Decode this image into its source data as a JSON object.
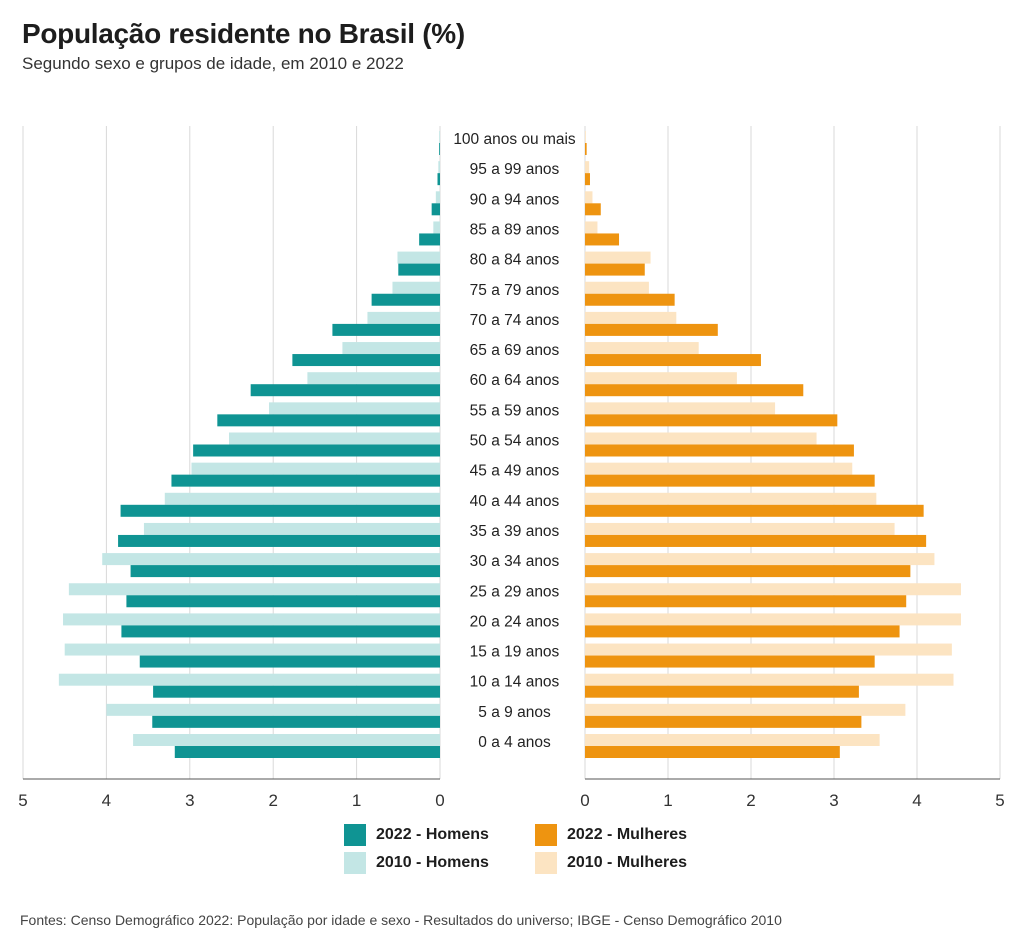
{
  "title": "População residente no Brasil (%)",
  "subtitle": "Segundo sexo e grupos de idade, em 2010 e 2022",
  "source": "Fontes: Censo Demográfico 2022: População por idade e sexo - Resultados do universo; IBGE - Censo Demográfico 2010",
  "legend": {
    "men_2022": "2022 - Homens",
    "men_2010": "2010 - Homens",
    "women_2022": "2022 - Mulheres",
    "women_2010": "2010 - Mulheres"
  },
  "colors": {
    "men_2022": "#0f9493",
    "men_2010": "#c3e6e5",
    "women_2022": "#ee9410",
    "women_2010": "#fce4c2",
    "grid": "#d9d9d9",
    "axis": "#555555"
  },
  "chart_data": {
    "type": "bar",
    "orientation": "horizontal-pyramid",
    "title": "População residente no Brasil (%)",
    "subtitle": "Segundo sexo e grupos de idade, em 2010 e 2022",
    "xlim": [
      0,
      5
    ],
    "xticks": [
      "0",
      "1",
      "2",
      "3",
      "4",
      "5"
    ],
    "grid": true,
    "legend_position": "bottom",
    "categories": [
      "100 anos ou mais",
      "95 a 99 anos",
      "90 a 94 anos",
      "85 a 89 anos",
      "80 a 84 anos",
      "75 a 79 anos",
      "70 a 74 anos",
      "65 a 69 anos",
      "60 a 64 anos",
      "55 a 59 anos",
      "50 a 54 anos",
      "45 a 49 anos",
      "40 a 44 anos",
      "35 a 39 anos",
      "30 a 34 anos",
      "25 a 29 anos",
      "20 a 24 anos",
      "15 a 19 anos",
      "10 a 14 anos",
      "5 a 9 anos",
      "0 a 4 anos"
    ],
    "series": [
      {
        "name": "2010 - Homens",
        "side": "left",
        "values": [
          0.01,
          0.02,
          0.05,
          0.08,
          0.51,
          0.57,
          0.87,
          1.17,
          1.59,
          2.05,
          2.53,
          2.98,
          3.3,
          3.55,
          4.05,
          4.45,
          4.52,
          4.5,
          4.57,
          4.0,
          3.68
        ]
      },
      {
        "name": "2022 - Homens",
        "side": "left",
        "values": [
          0.01,
          0.03,
          0.1,
          0.25,
          0.5,
          0.82,
          1.29,
          1.77,
          2.27,
          2.67,
          2.96,
          3.22,
          3.83,
          3.86,
          3.71,
          3.76,
          3.82,
          3.6,
          3.44,
          3.45,
          3.18
        ]
      },
      {
        "name": "2010 - Mulheres",
        "side": "right",
        "values": [
          0.01,
          0.05,
          0.09,
          0.15,
          0.79,
          0.77,
          1.1,
          1.37,
          1.83,
          2.29,
          2.79,
          3.22,
          3.51,
          3.73,
          4.21,
          4.53,
          4.53,
          4.42,
          4.44,
          3.86,
          3.55
        ]
      },
      {
        "name": "2022 - Mulheres",
        "side": "right",
        "values": [
          0.02,
          0.06,
          0.19,
          0.41,
          0.72,
          1.08,
          1.6,
          2.12,
          2.63,
          3.04,
          3.24,
          3.49,
          4.08,
          4.11,
          3.92,
          3.87,
          3.79,
          3.49,
          3.3,
          3.33,
          3.07
        ]
      }
    ]
  }
}
